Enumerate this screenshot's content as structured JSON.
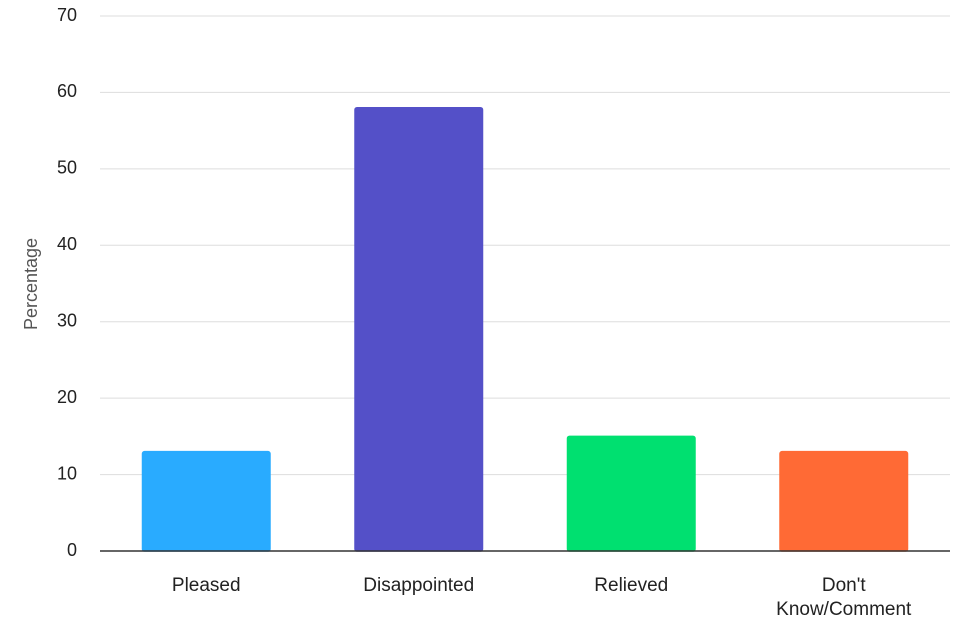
{
  "chart_data": {
    "type": "bar",
    "y_label": "Percentage",
    "categories": [
      "Pleased",
      "Disappointed",
      "Relieved",
      "Don't Know/Comment"
    ],
    "values": [
      13,
      58,
      15,
      13
    ],
    "colors": [
      "#29abff",
      "#5450c8",
      "#00e070",
      "#ff6a35"
    ],
    "ylim": [
      0,
      70
    ],
    "yticks": [
      0,
      10,
      20,
      30,
      40,
      50,
      60,
      70
    ],
    "grid": true
  }
}
